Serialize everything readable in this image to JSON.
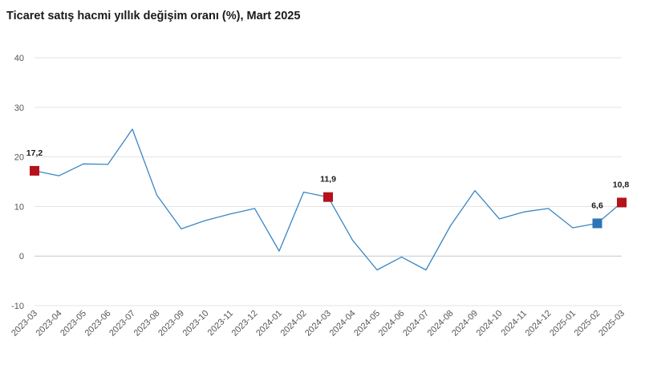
{
  "title": "Ticaret satış hacmi yıllık değişim oranı (%), Mart 2025",
  "colors": {
    "line": "#3a86c4",
    "highlight_red": "#b5121b",
    "highlight_blue": "#2e75b6",
    "grid": "#e3e3e3",
    "zero_line": "#c8c8c8"
  },
  "chart_data": {
    "type": "line",
    "title": "Ticaret satış hacmi yıllık değişim oranı (%), Mart 2025",
    "xlabel": "",
    "ylabel": "",
    "ylim": [
      -10,
      40
    ],
    "yticks": [
      -10,
      0,
      10,
      20,
      30,
      40
    ],
    "grid": "horizontal",
    "categories": [
      "2023-03",
      "2023-04",
      "2023-05",
      "2023-06",
      "2023-07",
      "2023-08",
      "2023-09",
      "2023-10",
      "2023-11",
      "2023-12",
      "2024-01",
      "2024-02",
      "2024-03",
      "2024-04",
      "2024-05",
      "2024-06",
      "2024-07",
      "2024-08",
      "2024-09",
      "2024-10",
      "2024-11",
      "2024-12",
      "2025-01",
      "2025-02",
      "2025-03"
    ],
    "values": [
      17.2,
      16.2,
      18.6,
      18.5,
      25.6,
      12.3,
      5.5,
      7.2,
      8.5,
      9.6,
      1.0,
      12.9,
      11.9,
      3.2,
      -2.8,
      -0.2,
      -2.8,
      6.1,
      13.2,
      7.5,
      8.9,
      9.6,
      5.7,
      6.6,
      10.8
    ],
    "highlights": [
      {
        "index": 0,
        "label": "17,2",
        "color": "red"
      },
      {
        "index": 12,
        "label": "11,9",
        "color": "red"
      },
      {
        "index": 23,
        "label": "6,6",
        "color": "blue"
      },
      {
        "index": 24,
        "label": "10,8",
        "color": "red"
      }
    ]
  }
}
